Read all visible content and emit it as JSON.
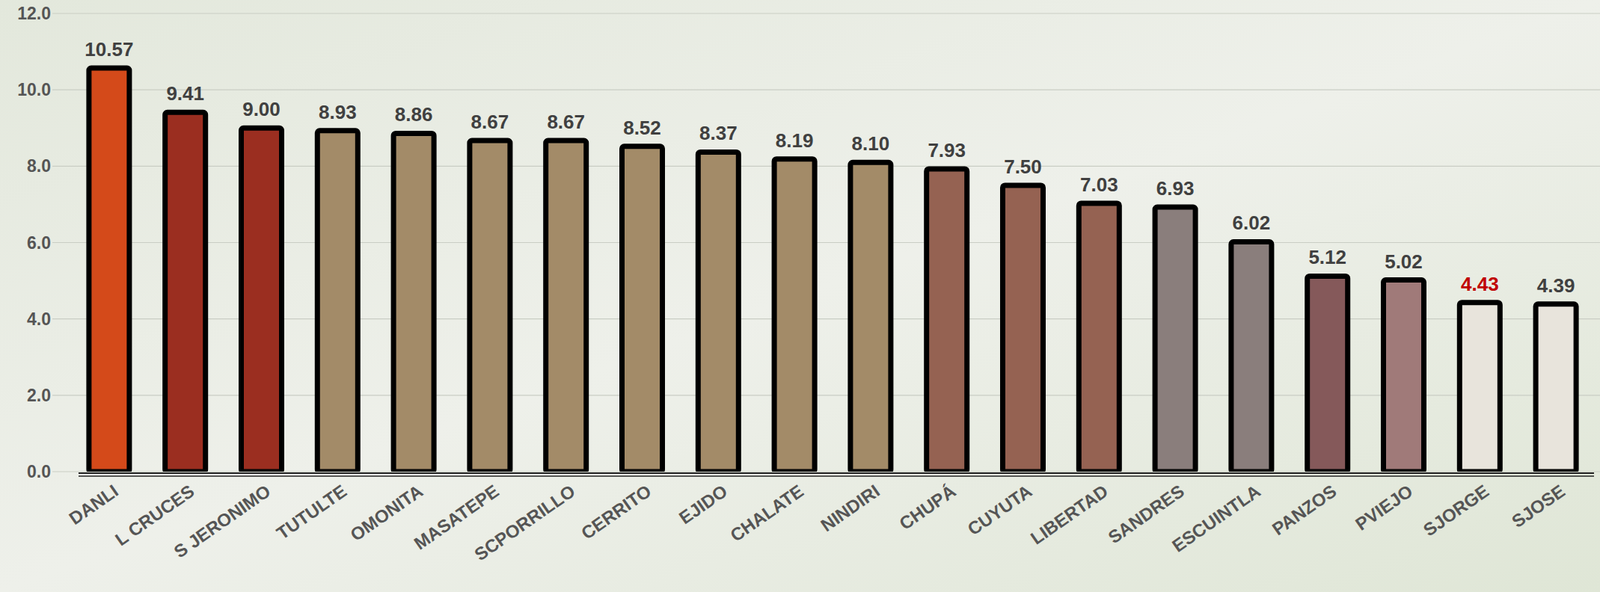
{
  "chart_data": {
    "type": "bar",
    "categories": [
      "DANLI",
      "L CRUCES",
      "S JERONIMO",
      "TUTULTE",
      "OMONITA",
      "MASATEPE",
      "SCPORRILLO",
      "CERRITO",
      "EJIDO",
      "CHALATE",
      "NINDIRI",
      "CHUPÁ",
      "CUYUTA",
      "LIBERTAD",
      "SANDRES",
      "ESCUINTLA",
      "PANZOS",
      "PVIEJO",
      "SJORGE",
      "SJOSE"
    ],
    "values": [
      10.57,
      9.41,
      9.0,
      8.93,
      8.86,
      8.67,
      8.67,
      8.52,
      8.37,
      8.19,
      8.1,
      7.93,
      7.5,
      7.03,
      6.93,
      6.02,
      5.12,
      5.02,
      4.43,
      4.39
    ],
    "value_labels": [
      "10.57",
      "9.41",
      "9.00",
      "8.93",
      "8.86",
      "8.67",
      "8.67",
      "8.52",
      "8.37",
      "8.19",
      "8.10",
      "7.93",
      "7.50",
      "7.03",
      "6.93",
      "6.02",
      "5.12",
      "5.02",
      "4.43",
      "4.39"
    ],
    "colors": [
      "#d44a1a",
      "#9b2e20",
      "#9b2e20",
      "#a38b68",
      "#a38b68",
      "#a38b68",
      "#a38b68",
      "#a38b68",
      "#a38b68",
      "#a38b68",
      "#a38b68",
      "#956252",
      "#956252",
      "#956252",
      "#8a7e7c",
      "#8a7e7c",
      "#85595a",
      "#a07a79",
      "#e8e4dc",
      "#e8e4dc"
    ],
    "ylim": [
      0,
      12
    ],
    "yticks": [
      {
        "value": 0,
        "label": "0.0"
      },
      {
        "value": 2,
        "label": "2.0"
      },
      {
        "value": 4,
        "label": "4.0"
      },
      {
        "value": 6,
        "label": "6.0"
      },
      {
        "value": 8,
        "label": "8.0"
      },
      {
        "value": 10,
        "label": "10.0"
      },
      {
        "value": 12,
        "label": "12.0"
      }
    ],
    "grid": true,
    "data_labels": true
  }
}
